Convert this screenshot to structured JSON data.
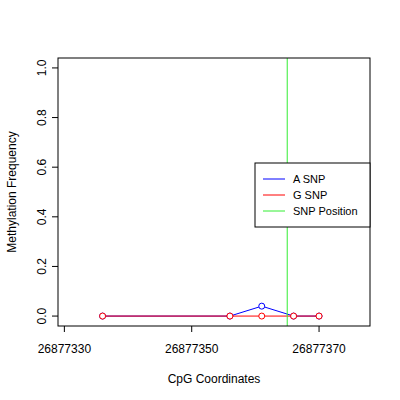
{
  "chart_data": {
    "type": "line",
    "x_label": "CpG Coordinates",
    "y_label": "Methylation Frequency",
    "xlim": [
      26877329,
      26877378
    ],
    "ylim": [
      -0.04,
      1.04
    ],
    "xticks": [
      26877330,
      26877350,
      26877370
    ],
    "yticks": [
      {
        "value": 0,
        "label": "0.0"
      },
      0.2,
      0.4,
      0.6,
      0.8,
      {
        "value": 1,
        "label": "1.0"
      }
    ],
    "x": [
      26877336,
      26877356,
      26877361,
      26877366,
      26877370
    ],
    "series": [
      {
        "name": "A SNP",
        "color": "#0000ff",
        "marker": "open-circle",
        "values": [
          0,
          0,
          0.04,
          0,
          0
        ]
      },
      {
        "name": "G SNP",
        "color": "#ff0000",
        "marker": "open-circle",
        "values": [
          0,
          0,
          0,
          0,
          0
        ]
      }
    ],
    "snp_position": {
      "name": "SNP Position",
      "color": "#33ee33",
      "x": 26877365
    },
    "legend": "right"
  }
}
